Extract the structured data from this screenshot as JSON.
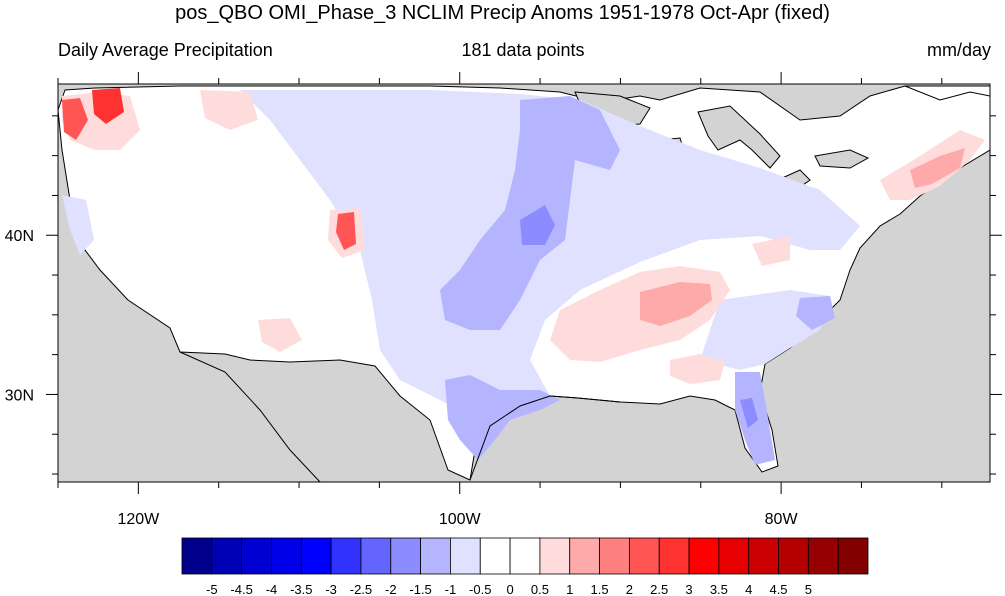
{
  "title": "pos_QBO OMI_Phase_3 NCLIM Precip Anoms 1951-1978 Oct-Apr (fixed)",
  "subtitle_left": "Daily Average Precipitation",
  "subtitle_center": "181 data points",
  "subtitle_right": "mm/day",
  "map": {
    "lon_range": [
      -125,
      -67
    ],
    "lat_range": [
      24.5,
      49.5
    ],
    "lon_ticks": [
      {
        "lon": -120,
        "label": "120W"
      },
      {
        "lon": -100,
        "label": "100W"
      },
      {
        "lon": -80,
        "label": "80W"
      }
    ],
    "lat_ticks": [
      {
        "lat": 40,
        "label": "40N"
      },
      {
        "lat": 30,
        "label": "30N"
      }
    ],
    "land_color": "#ffffff",
    "outside_color": "#d3d3d3"
  },
  "colorbar": {
    "colors": [
      "#00008c",
      "#0000b4",
      "#0000d2",
      "#0000e8",
      "#0000ff",
      "#3232ff",
      "#6464ff",
      "#8c8cff",
      "#b4b4ff",
      "#e0e0ff",
      "#ffffff",
      "#ffffff",
      "#ffdcdc",
      "#ffaaaa",
      "#ff8080",
      "#ff5555",
      "#ff3232",
      "#ff0000",
      "#e60000",
      "#cc0000",
      "#b40000",
      "#960000",
      "#820000"
    ],
    "labels": [
      "-5",
      "-4.5",
      "-4",
      "-3.5",
      "-3",
      "-2.5",
      "-2",
      "-1.5",
      "-1",
      "-0.5",
      "0",
      "0.5",
      "1",
      "1.5",
      "2",
      "2.5",
      "3",
      "3.5",
      "4",
      "4.5",
      "5"
    ]
  }
}
